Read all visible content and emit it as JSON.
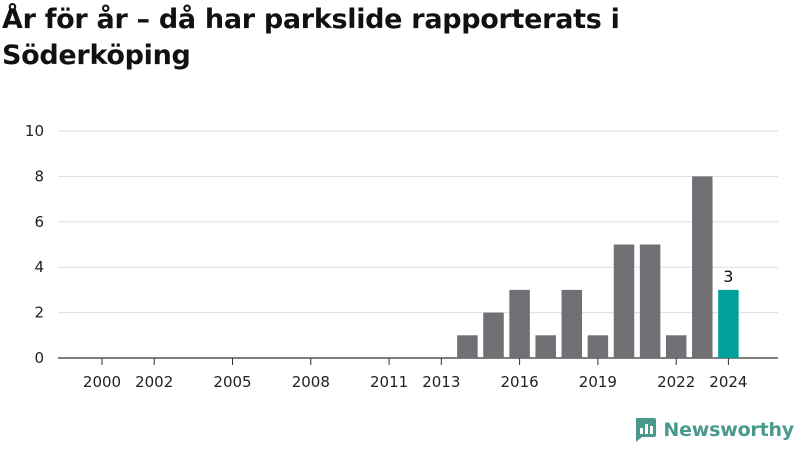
{
  "title": "År för år – då har parkslide rapporterats i Söderköping",
  "brand": {
    "name": "Newsworthy",
    "icon": "bar-chart-logo-icon",
    "color": "#4a9a8c"
  },
  "chart_data": {
    "type": "bar",
    "title": "År för år – då har parkslide rapporterats i Söderköping",
    "xlabel": "",
    "ylabel": "",
    "ylim": [
      0,
      10
    ],
    "yticks": [
      0,
      2,
      4,
      6,
      8,
      10
    ],
    "x_tick_labels": [
      "2000",
      "2002",
      "2005",
      "2008",
      "2011",
      "2013",
      "2016",
      "2019",
      "2022",
      "2024"
    ],
    "categories": [
      "2000",
      "2001",
      "2002",
      "2003",
      "2004",
      "2005",
      "2006",
      "2007",
      "2008",
      "2009",
      "2010",
      "2011",
      "2012",
      "2013",
      "2014",
      "2015",
      "2016",
      "2017",
      "2018",
      "2019",
      "2020",
      "2021",
      "2022",
      "2023",
      "2024"
    ],
    "values": [
      0,
      0,
      0,
      0,
      0,
      0,
      0,
      0,
      0,
      0,
      0,
      0,
      0,
      0,
      1,
      2,
      3,
      1,
      3,
      1,
      5,
      5,
      1,
      8,
      3
    ],
    "highlight": {
      "category": "2024",
      "value": 3,
      "label": "3"
    },
    "colors": {
      "bar": "#6f6f74",
      "highlight": "#00a19a",
      "grid": "#dddddd",
      "axis": "#333333"
    },
    "grid": true,
    "legend": "none"
  }
}
